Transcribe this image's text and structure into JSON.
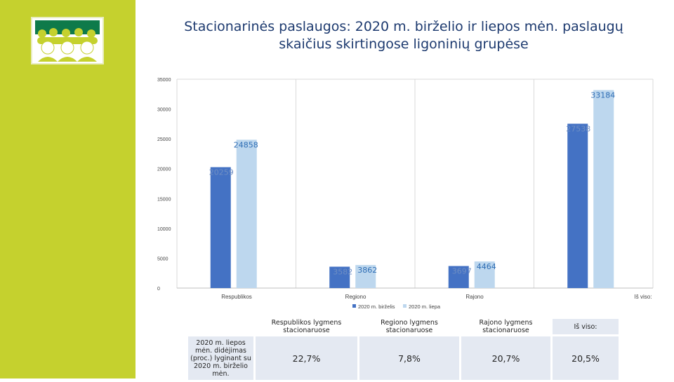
{
  "title_lines": [
    "Stacionarinės paslaugos: 2020 m. birželio ir  liepos mėn. paslaugų",
    "skaičius skirtingose ligoninių grupėse"
  ],
  "colors": {
    "sidebar": "#c5d12e",
    "series1": "#4472c4",
    "series2": "#bdd7ee",
    "title": "#1d3a6f"
  },
  "logo": {
    "icon": "people-group-logo-icon"
  },
  "chart_data": {
    "type": "bar",
    "categories": [
      "Respublikos",
      "Regiono",
      "Rajono",
      "Iš viso:"
    ],
    "series": [
      {
        "name": "2020 m. birželis",
        "values": [
          20259,
          3582,
          3697,
          27538
        ]
      },
      {
        "name": "2020 m. liepa",
        "values": [
          24858,
          3862,
          4464,
          33184
        ]
      }
    ],
    "ylim": [
      0,
      35000
    ],
    "yticks": [
      0,
      5000,
      10000,
      15000,
      20000,
      25000,
      30000,
      35000
    ],
    "grid": "vertical",
    "legend": "bottom",
    "data_labels": true
  },
  "table": {
    "headers": [
      "Respublikos lygmens stacionaruose",
      "Regiono lygmens stacionaruose",
      "Rajono lygmens stacionaruose",
      "Iš viso:"
    ],
    "row_label": "2020 m. liepos mėn. didėjimas (proc.) lyginant su 2020 m. birželio mėn.",
    "values": [
      "22,7%",
      "7,8%",
      "20,7%",
      "20,5%"
    ]
  }
}
